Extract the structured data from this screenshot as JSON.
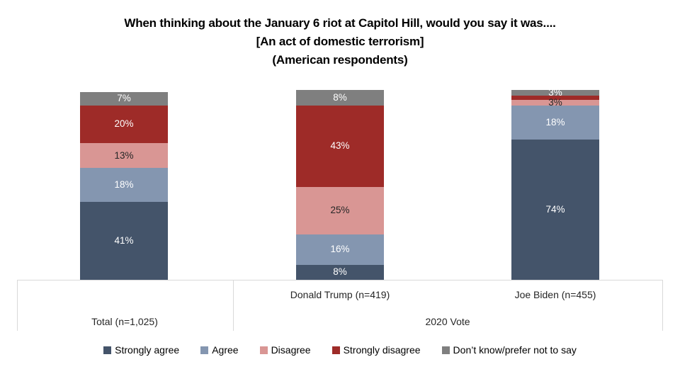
{
  "title": {
    "line1": "When thinking about the January 6 riot at Capitol Hill, would you say it was....",
    "line2": "[An act of domestic terrorism]",
    "line3": "(American respondents)"
  },
  "axis": {
    "group2_label": "2020 Vote"
  },
  "chart_data": {
    "type": "bar",
    "stacked": true,
    "orientation": "vertical",
    "unit": "%",
    "ylim": [
      0,
      100
    ],
    "grid": false,
    "legend_position": "bottom",
    "data_label_format": "{value}%",
    "categories": [
      "Total (n=1,025)",
      "Donald Trump (n=419)",
      "Joe Biden (n=455)"
    ],
    "category_groups": [
      {
        "label": "",
        "categories": [
          "Total (n=1,025)"
        ]
      },
      {
        "label": "2020 Vote",
        "categories": [
          "Donald Trump (n=419)",
          "Joe Biden (n=455)"
        ]
      }
    ],
    "series": [
      {
        "name": "Strongly agree",
        "color": "#44546A",
        "label_color": "#FFFFFF",
        "values": [
          41,
          8,
          74
        ]
      },
      {
        "name": "Agree",
        "color": "#8496B0",
        "label_color": "#FFFFFF",
        "values": [
          18,
          16,
          18
        ]
      },
      {
        "name": "Disagree",
        "color": "#D99694",
        "label_color": "#262626",
        "values": [
          13,
          25,
          3
        ]
      },
      {
        "name": "Strongly disagree",
        "color": "#9E2B28",
        "label_color": "#FFFFFF",
        "values": [
          20,
          43,
          2
        ]
      },
      {
        "name": "Don’t know/prefer not to say",
        "color": "#7F7F7F",
        "label_color": "#FFFFFF",
        "values": [
          7,
          8,
          3
        ]
      }
    ],
    "hidden_labels": [
      {
        "series": "Strongly disagree",
        "category": "Joe Biden (n=455)"
      }
    ]
  },
  "colors": {
    "background": "#FFFFFF",
    "axis_line": "#D9D9D9",
    "title_text": "#000000",
    "axis_text": "#262626"
  }
}
